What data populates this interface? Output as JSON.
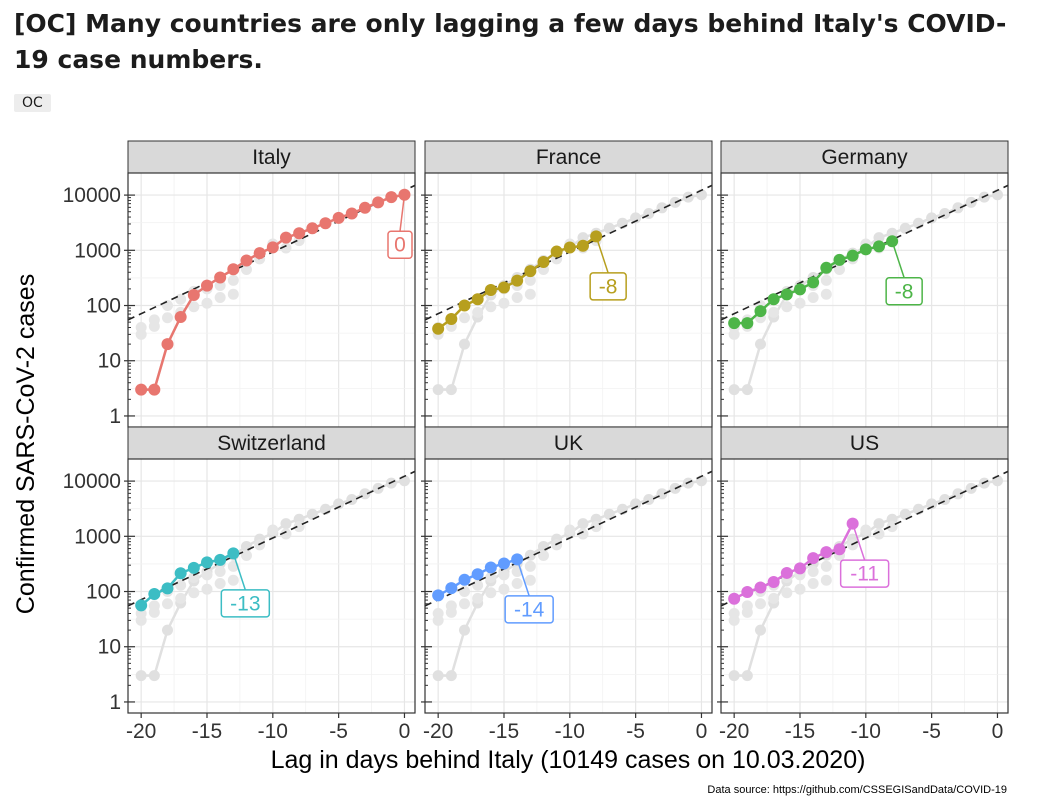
{
  "post": {
    "title": "[OC] Many countries are only lagging a few days behind Italy's COVID-19 case numbers.",
    "flair": "OC"
  },
  "chart_data": {
    "type": "scatter",
    "xlabel": "Lag in days behind Italy (10149 cases on 10.03.2020)",
    "ylabel": "Confirmed SARS-CoV-2 cases",
    "source": "Data source: https://github.com/CSSEGISandData/COVID-19",
    "xlim": [
      -21,
      0.8
    ],
    "ylim_log10": [
      -0.2,
      4.4
    ],
    "x_ticks": [
      -20,
      -15,
      -10,
      -5,
      0
    ],
    "x_tick_labels": [
      "-20",
      "-15",
      "-10",
      "-5",
      "0"
    ],
    "y_ticks": [
      1,
      10,
      100,
      1000,
      10000
    ],
    "y_tick_labels": [
      "1",
      "10",
      "100",
      "1000",
      "10000"
    ],
    "y_scale": "log10",
    "reference_line": {
      "style": "dashed",
      "x": [
        -21,
        0.8
      ],
      "y": [
        55,
        15000
      ]
    },
    "background_series": {
      "name": "Italy (grey background)",
      "color": "#e0e0e0",
      "x": [
        -20,
        -19,
        -18,
        -17,
        -16,
        -15,
        -14,
        -13,
        -12,
        -11,
        -10,
        -9,
        -8,
        -7,
        -6,
        -5,
        -4,
        -3,
        -2,
        -1,
        0
      ],
      "y": [
        3,
        3,
        20,
        62,
        155,
        229,
        322,
        453,
        655,
        888,
        1128,
        1694,
        2036,
        2502,
        3089,
        3858,
        4636,
        5883,
        7375,
        9172,
        10149
      ]
    },
    "grey_shadow_series": [
      {
        "name": "Countries (grey shadows)",
        "x": [
          -20,
          -19,
          -18,
          -17,
          -16,
          -15,
          -14,
          -13,
          -12,
          -11,
          -10,
          -9,
          -8
        ],
        "y": [
          40,
          55,
          100,
          130,
          180,
          200,
          230,
          285,
          450,
          700,
          1300,
          1100,
          1500
        ]
      },
      {
        "name": "Countries low (grey shadows)",
        "x": [
          -20,
          -19,
          -18,
          -17,
          -16,
          -15,
          -14,
          -13
        ],
        "y": [
          30,
          42,
          60,
          75,
          95,
          110,
          140,
          160
        ]
      }
    ],
    "panels": [
      {
        "country": "Italy",
        "color": "#e8766f",
        "lag": 0,
        "lag_label": "0",
        "x": [
          -20,
          -19,
          -18,
          -17,
          -16,
          -15,
          -14,
          -13,
          -12,
          -11,
          -10,
          -9,
          -8,
          -7,
          -6,
          -5,
          -4,
          -3,
          -2,
          -1,
          0
        ],
        "y": [
          3,
          3,
          20,
          62,
          155,
          229,
          322,
          453,
          655,
          888,
          1128,
          1694,
          2036,
          2502,
          3089,
          3858,
          4636,
          5883,
          7375,
          9172,
          10149
        ]
      },
      {
        "country": "France",
        "color": "#b79f1e",
        "lag": -8,
        "lag_label": "-8",
        "x": [
          -20,
          -19,
          -18,
          -17,
          -16,
          -15,
          -14,
          -13,
          -12,
          -11,
          -10,
          -9,
          -8
        ],
        "y": [
          38,
          57,
          100,
          130,
          191,
          212,
          282,
          420,
          613,
          949,
          1126,
          1209,
          1784
        ]
      },
      {
        "country": "Germany",
        "color": "#4db548",
        "lag": -8,
        "lag_label": "-8",
        "x": [
          -20,
          -19,
          -18,
          -17,
          -16,
          -15,
          -14,
          -13,
          -12,
          -11,
          -10,
          -9,
          -8
        ],
        "y": [
          48,
          48,
          79,
          130,
          159,
          196,
          262,
          482,
          670,
          799,
          1040,
          1176,
          1457
        ]
      },
      {
        "country": "Switzerland",
        "color": "#3cbdc4",
        "lag": -13,
        "lag_label": "-13",
        "x": [
          -20,
          -19,
          -18,
          -17,
          -16,
          -15,
          -14,
          -13
        ],
        "y": [
          56,
          90,
          114,
          214,
          268,
          337,
          374,
          491
        ]
      },
      {
        "country": "UK",
        "color": "#619cff",
        "lag": -14,
        "lag_label": "-14",
        "x": [
          -20,
          -19,
          -18,
          -17,
          -16,
          -15,
          -14
        ],
        "y": [
          85,
          115,
          163,
          206,
          273,
          321,
          382
        ]
      },
      {
        "country": "US",
        "color": "#db70db",
        "lag": -11,
        "lag_label": "-11",
        "x": [
          -20,
          -19,
          -18,
          -17,
          -16,
          -15,
          -14,
          -13,
          -12,
          -11
        ],
        "y": [
          74,
          98,
          118,
          149,
          217,
          262,
          402,
          518,
          583,
          1700
        ]
      }
    ]
  }
}
